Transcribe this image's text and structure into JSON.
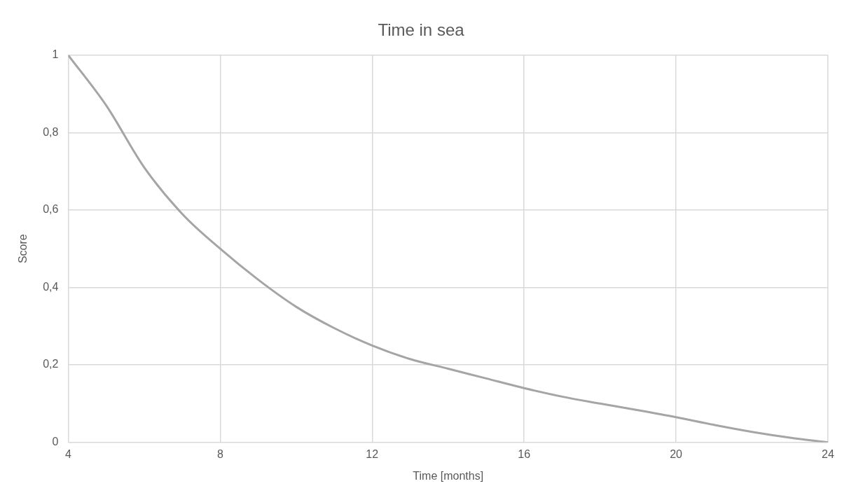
{
  "chart_data": {
    "type": "line",
    "title": "Time in sea",
    "xlabel": "Time [months]",
    "ylabel": "Score",
    "x": [
      4,
      5,
      6,
      7,
      8,
      9,
      10,
      11,
      12,
      13,
      14,
      15,
      16,
      17,
      18,
      19,
      20,
      21,
      22,
      23,
      24
    ],
    "series": [
      {
        "color": "#a5a5a5",
        "values": [
          1,
          0.87,
          0.71,
          0.59,
          0.5,
          0.42,
          0.35,
          0.295,
          0.25,
          0.215,
          0.19,
          0.165,
          0.14,
          0.118,
          0.1,
          0.083,
          0.065,
          0.045,
          0.027,
          0.012,
          0
        ]
      }
    ],
    "xlim": [
      4,
      24
    ],
    "xticks": [
      4,
      8,
      12,
      16,
      20,
      24
    ],
    "ylim": [
      0,
      1
    ],
    "yticks": [
      0,
      {
        "value": 0.2,
        "label": "0,2"
      },
      {
        "value": 0.4,
        "label": "0,4"
      },
      {
        "value": 0.6,
        "label": "0,6"
      },
      {
        "value": 0.8,
        "label": "0,8"
      },
      1
    ],
    "grid": true,
    "legend": false,
    "marker": "none",
    "line_style": "solid"
  }
}
